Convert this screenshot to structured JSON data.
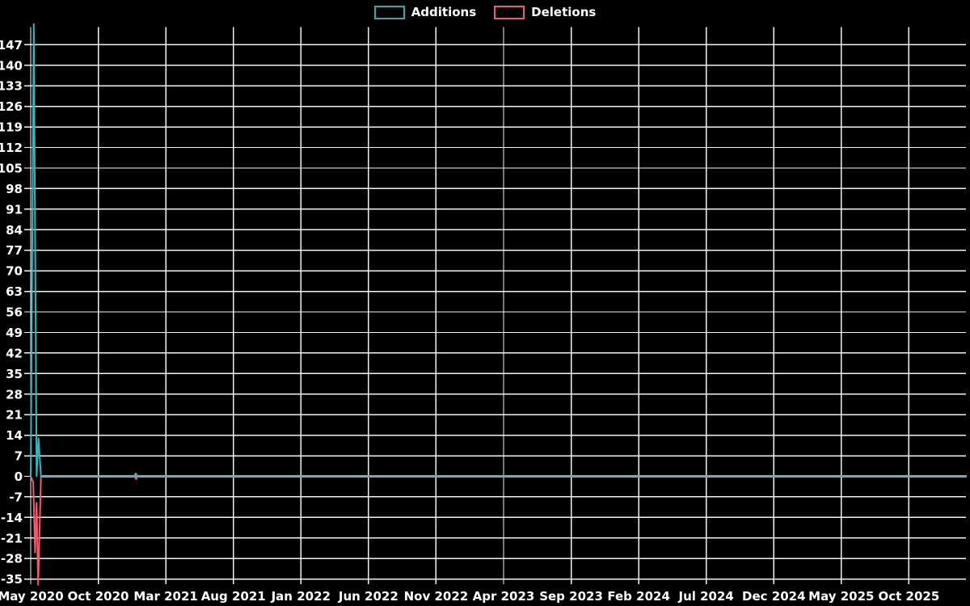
{
  "legend": {
    "items": [
      {
        "label": "Additions",
        "color": "#35a9ae"
      },
      {
        "label": "Deletions",
        "color": "#ee5b72"
      }
    ]
  },
  "chart_data": {
    "type": "line",
    "title": "",
    "background_color": "#000000",
    "grid": true,
    "grid_color": "#f2f2f2",
    "text_color": "#ffffff",
    "legend_position": "top-center",
    "x_axis": {
      "unit": "weeks since May 2020",
      "tick_labels": [
        "May 2020",
        "Oct 2020",
        "Mar 2021",
        "Aug 2021",
        "Jan 2022",
        "Jun 2022",
        "Nov 2022",
        "Apr 2023",
        "Sep 2023",
        "Feb 2024",
        "Jul 2024",
        "Dec 2024",
        "May 2025",
        "Oct 2025"
      ],
      "months_between_ticks": 5,
      "end_week": 301
    },
    "y_axis": {
      "ticks": [
        147,
        140,
        133,
        126,
        119,
        112,
        105,
        98,
        91,
        84,
        77,
        70,
        63,
        56,
        49,
        42,
        35,
        28,
        21,
        14,
        7,
        0,
        -7,
        -14,
        -21,
        -28,
        -35
      ],
      "tick_step": 7,
      "min": -37,
      "max": 154
    },
    "series": [
      {
        "name": "Additions",
        "color": "#3ab4bc",
        "segments": [
          [
            [
              0,
              0
            ],
            [
              1,
              154
            ],
            [
              1.9,
              0
            ],
            [
              2.5,
              13
            ],
            [
              3.3,
              0
            ]
          ],
          [
            [
              33.2,
              0
            ],
            [
              33.8,
              1
            ],
            [
              34.4,
              0
            ]
          ]
        ]
      },
      {
        "name": "Deletions",
        "color": "#ee5b72",
        "segments": [
          [
            [
              0,
              0
            ],
            [
              0.8,
              -2
            ],
            [
              1.4,
              -26
            ],
            [
              1.9,
              -9
            ],
            [
              2.4,
              -37
            ],
            [
              3.3,
              0
            ]
          ],
          [
            [
              33.4,
              0
            ],
            [
              33.9,
              -1
            ],
            [
              34.4,
              0
            ]
          ]
        ]
      }
    ],
    "baseline": {
      "value": 0,
      "from_week": 3.3,
      "to_week": 301,
      "color": "#7ea7b0"
    }
  }
}
